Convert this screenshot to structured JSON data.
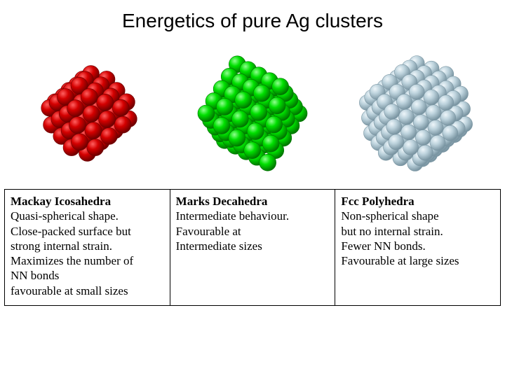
{
  "title": "Energetics of pure Ag clusters",
  "background_color": "#ffffff",
  "title_fontsize": 28,
  "desc_fontsize": 17,
  "clusters": [
    {
      "name": "Mackay Icosahedra",
      "lines": [
        "Quasi-spherical shape.",
        "Close-packed surface but",
        "strong internal strain.",
        "Maximizes the number of",
        "NN bonds",
        "favourable at small sizes"
      ],
      "color": "#d40000",
      "highlight": "#ff6060",
      "shadow": "#700000"
    },
    {
      "name": "Marks Decahedra",
      "lines": [
        "Intermediate behaviour.",
        "Favourable at",
        "Intermediate sizes"
      ],
      "color": "#00e000",
      "highlight": "#90ff90",
      "shadow": "#007800"
    },
    {
      "name": "Fcc Polyhedra",
      "lines": [
        "Non-spherical shape",
        "but no internal strain.",
        "Fewer NN bonds.",
        "Favourable at large sizes"
      ],
      "color": "#bcd2dc",
      "highlight": "#eef6fa",
      "shadow": "#7a95a2"
    }
  ],
  "svg_size": 200,
  "atom_radius": 12
}
